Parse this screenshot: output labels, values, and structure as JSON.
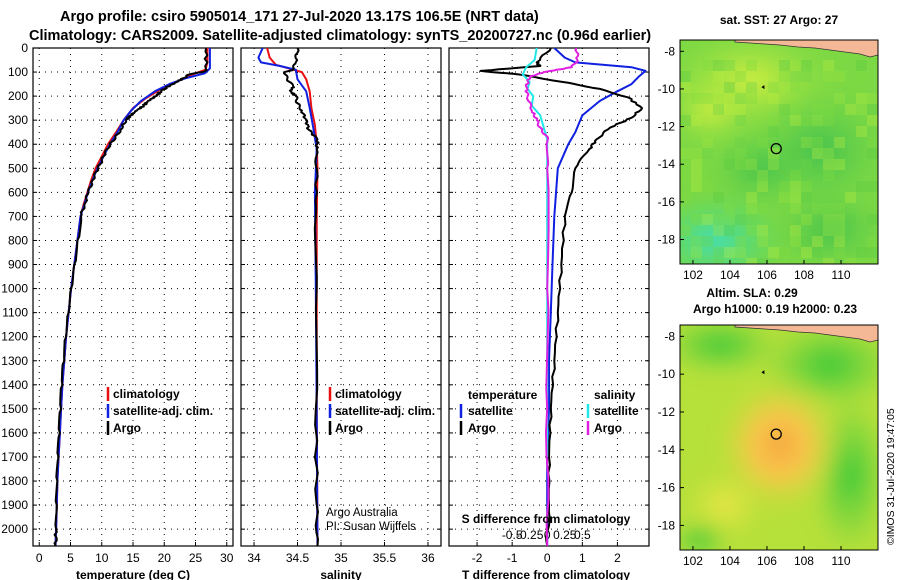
{
  "title_line1": "Argo profile: csiro 5905014_171 27-Jul-2020 13.17S 106.5E (NRT data)",
  "title_line2": "Climatology: CARS2009. Satellite-adjusted climatology: synTS_20200727.nc (0.96d earlier)",
  "credits": {
    "line1": "Argo Australia",
    "line2": "PI: Susan Wijffels"
  },
  "watermark": "©IMOS 31-Jul-2020 19:47:05",
  "colors": {
    "climatology": "#e81010",
    "satellite": "#1020e0",
    "argo": "#000000",
    "salinity_sat": "#20e8e8",
    "salinity_argo": "#e020e0"
  },
  "chart_data": [
    {
      "id": "temperature-panel",
      "type": "line",
      "xlabel": "temperature (deg C)",
      "xlim": [
        -1,
        31
      ],
      "xticks": [
        0,
        5,
        10,
        15,
        20,
        25,
        30
      ],
      "ylim": [
        2070,
        0
      ],
      "yticks": [
        0,
        100,
        200,
        300,
        400,
        500,
        600,
        700,
        800,
        900,
        1000,
        1100,
        1200,
        1300,
        1400,
        1500,
        1600,
        1700,
        1800,
        1900,
        2000
      ],
      "legend": [
        "climatology",
        "satellite-adj. clim.",
        "Argo"
      ],
      "series": [
        {
          "name": "climatology",
          "color": "#e81010",
          "points": [
            [
              26.9,
              0
            ],
            [
              26.9,
              60
            ],
            [
              26.6,
              90
            ],
            [
              24.5,
              110
            ],
            [
              22,
              140
            ],
            [
              19.5,
              170
            ],
            [
              17,
              210
            ],
            [
              15,
              250
            ],
            [
              13.5,
              300
            ],
            [
              12.3,
              350
            ],
            [
              11,
              400
            ],
            [
              10,
              450
            ],
            [
              9,
              500
            ],
            [
              8.3,
              550
            ],
            [
              7.7,
              600
            ],
            [
              7.1,
              650
            ],
            [
              6.6,
              700
            ],
            [
              6.1,
              800
            ],
            [
              5.6,
              900
            ],
            [
              5.1,
              1000
            ],
            [
              4.7,
              1100
            ],
            [
              4.3,
              1200
            ],
            [
              4,
              1300
            ],
            [
              3.7,
              1400
            ],
            [
              3.5,
              1500
            ],
            [
              3.3,
              1600
            ],
            [
              3.1,
              1700
            ],
            [
              2.9,
              1800
            ],
            [
              2.8,
              1900
            ],
            [
              2.7,
              2000
            ],
            [
              2.6,
              2070
            ]
          ]
        },
        {
          "name": "satellite-adj. clim.",
          "color": "#1020e0",
          "points": [
            [
              27.3,
              0
            ],
            [
              27.3,
              85
            ],
            [
              26.5,
              105
            ],
            [
              23.5,
              125
            ],
            [
              20.8,
              150
            ],
            [
              18.5,
              180
            ],
            [
              16.3,
              220
            ],
            [
              14.7,
              260
            ],
            [
              13.5,
              300
            ],
            [
              12.5,
              350
            ],
            [
              11.3,
              400
            ],
            [
              10.3,
              450
            ],
            [
              9.3,
              500
            ],
            [
              8.5,
              550
            ],
            [
              7.8,
              600
            ],
            [
              7.2,
              650
            ],
            [
              6.6,
              700
            ],
            [
              6.1,
              800
            ],
            [
              5.6,
              900
            ],
            [
              5.1,
              1000
            ],
            [
              4.7,
              1100
            ],
            [
              4.3,
              1200
            ],
            [
              4,
              1300
            ],
            [
              3.7,
              1400
            ],
            [
              3.5,
              1500
            ],
            [
              3.3,
              1600
            ],
            [
              3.1,
              1700
            ],
            [
              2.9,
              1800
            ],
            [
              2.8,
              1900
            ],
            [
              2.7,
              2000
            ],
            [
              2.6,
              2070
            ]
          ]
        },
        {
          "name": "Argo",
          "color": "#000000",
          "points": [
            [
              26.7,
              0
            ],
            [
              26.7,
              90
            ],
            [
              26.1,
              100
            ],
            [
              24,
              110
            ],
            [
              23.1,
              125
            ],
            [
              21.7,
              145
            ],
            [
              20.3,
              165
            ],
            [
              19.5,
              180
            ],
            [
              18.7,
              200
            ],
            [
              17.4,
              220
            ],
            [
              16.7,
              240
            ],
            [
              15.6,
              260
            ],
            [
              14.6,
              280
            ],
            [
              13.9,
              300
            ],
            [
              13,
              340
            ],
            [
              12.2,
              370
            ],
            [
              11.3,
              400
            ],
            [
              10.3,
              450
            ],
            [
              9.4,
              500
            ],
            [
              8.5,
              550
            ],
            [
              7.9,
              600
            ],
            [
              7.2,
              650
            ],
            [
              6.7,
              700
            ],
            [
              6.1,
              800
            ],
            [
              5.6,
              900
            ],
            [
              5.1,
              1000
            ],
            [
              4.7,
              1100
            ],
            [
              4.3,
              1200
            ],
            [
              4,
              1300
            ],
            [
              3.7,
              1400
            ],
            [
              3.5,
              1500
            ],
            [
              3.3,
              1600
            ],
            [
              3.1,
              1700
            ],
            [
              2.9,
              1800
            ],
            [
              2.8,
              1900
            ],
            [
              2.7,
              2000
            ],
            [
              2.65,
              2070
            ]
          ]
        }
      ]
    },
    {
      "id": "salinity-panel",
      "type": "line",
      "xlabel": "salinity",
      "xlim": [
        33.85,
        36.15
      ],
      "xticks": [
        34,
        34.5,
        35,
        35.5,
        36
      ],
      "ylim": [
        2070,
        0
      ],
      "legend": [
        "climatology",
        "satellite-adj. clim.",
        "Argo"
      ],
      "series": [
        {
          "name": "climatology",
          "color": "#e81010",
          "points": [
            [
              34.15,
              0
            ],
            [
              34.18,
              40
            ],
            [
              34.25,
              70
            ],
            [
              34.45,
              90
            ],
            [
              34.55,
              100
            ],
            [
              34.6,
              130
            ],
            [
              34.64,
              180
            ],
            [
              34.66,
              250
            ],
            [
              34.7,
              320
            ],
            [
              34.72,
              400
            ],
            [
              34.73,
              500
            ],
            [
              34.72,
              700
            ],
            [
              34.72,
              1000
            ],
            [
              34.72,
              1500
            ],
            [
              34.73,
              2070
            ]
          ]
        },
        {
          "name": "satellite-adj. clim.",
          "color": "#1020e0",
          "points": [
            [
              34.1,
              0
            ],
            [
              34.05,
              40
            ],
            [
              34.08,
              60
            ],
            [
              34.3,
              75
            ],
            [
              34.48,
              90
            ],
            [
              34.5,
              130
            ],
            [
              34.6,
              180
            ],
            [
              34.64,
              250
            ],
            [
              34.68,
              330
            ],
            [
              34.72,
              420
            ],
            [
              34.7,
              600
            ],
            [
              34.71,
              1000
            ],
            [
              34.72,
              1500
            ],
            [
              34.73,
              2070
            ]
          ]
        },
        {
          "name": "Argo",
          "color": "#000000",
          "points": [
            [
              34.5,
              0
            ],
            [
              34.48,
              60
            ],
            [
              34.45,
              90
            ],
            [
              34.35,
              100
            ],
            [
              34.38,
              130
            ],
            [
              34.45,
              160
            ],
            [
              34.42,
              180
            ],
            [
              34.48,
              200
            ],
            [
              34.5,
              230
            ],
            [
              34.55,
              260
            ],
            [
              34.6,
              300
            ],
            [
              34.63,
              340
            ],
            [
              34.73,
              380
            ],
            [
              34.72,
              420
            ],
            [
              34.72,
              500
            ],
            [
              34.71,
              700
            ],
            [
              34.72,
              1000
            ],
            [
              34.71,
              1500
            ],
            [
              34.72,
              1900
            ],
            [
              34.73,
              2070
            ]
          ]
        }
      ]
    },
    {
      "id": "difference-panel",
      "type": "line",
      "xlabel": "T difference from climatology",
      "xlabel2": "S difference from climatology",
      "xlim": [
        -2.8,
        2.9
      ],
      "xticks": [
        -2,
        -1,
        0,
        1,
        2
      ],
      "x2ticks": [
        -0.5,
        -0.25,
        0,
        0.25,
        0.5
      ],
      "x2labels": [
        "-0.5",
        "-0.25",
        "0",
        "0.25",
        "0.5"
      ],
      "ylim": [
        2070,
        0
      ],
      "legend_left_title": "temperature",
      "legend_right_title": "salinity",
      "legend_left": [
        "satellite",
        "Argo"
      ],
      "legend_right": [
        "satellite",
        "Argo"
      ],
      "series": [
        {
          "name": "temperature satellite",
          "color": "#1020e0",
          "points": [
            [
              0.2,
              0
            ],
            [
              0.5,
              40
            ],
            [
              0.8,
              60
            ],
            [
              2.4,
              80
            ],
            [
              2.8,
              95
            ],
            [
              2.6,
              120
            ],
            [
              2.4,
              150
            ],
            [
              2,
              180
            ],
            [
              1.5,
              220
            ],
            [
              1,
              280
            ],
            [
              0.8,
              350
            ],
            [
              0.6,
              400
            ],
            [
              0.3,
              500
            ],
            [
              0.2,
              700
            ],
            [
              0.15,
              900
            ],
            [
              0.1,
              1100
            ],
            [
              0.05,
              1300
            ],
            [
              0.05,
              1500
            ],
            [
              0,
              1700
            ],
            [
              0,
              2000
            ],
            [
              0,
              2070
            ]
          ]
        },
        {
          "name": "temperature Argo",
          "color": "#000000",
          "points": [
            [
              0.1,
              0
            ],
            [
              -0.3,
              60
            ],
            [
              -0.2,
              75
            ],
            [
              -1.9,
              95
            ],
            [
              -0.8,
              110
            ],
            [
              0.4,
              140
            ],
            [
              1.5,
              170
            ],
            [
              2.3,
              205
            ],
            [
              2.7,
              250
            ],
            [
              2.4,
              290
            ],
            [
              1.8,
              330
            ],
            [
              1.4,
              380
            ],
            [
              1.2,
              420
            ],
            [
              0.8,
              500
            ],
            [
              0.7,
              600
            ],
            [
              0.5,
              700
            ],
            [
              0.4,
              900
            ],
            [
              0.3,
              1100
            ],
            [
              0.2,
              1300
            ],
            [
              0.1,
              1500
            ],
            [
              0.05,
              1700
            ],
            [
              0.05,
              1900
            ],
            [
              0,
              2070
            ]
          ]
        },
        {
          "name": "salinity satellite",
          "color": "#20e8e8",
          "points": [
            [
              -0.15,
              0
            ],
            [
              -0.18,
              50
            ],
            [
              -0.3,
              80
            ],
            [
              -0.35,
              110
            ],
            [
              -0.25,
              140
            ],
            [
              -0.28,
              170
            ],
            [
              -0.2,
              200
            ],
            [
              -0.22,
              240
            ],
            [
              -0.1,
              280
            ],
            [
              -0.05,
              330
            ],
            [
              0,
              380
            ],
            [
              0,
              600
            ],
            [
              0,
              1000
            ],
            [
              0,
              1500
            ],
            [
              0,
              1700
            ]
          ]
        },
        {
          "name": "salinity Argo",
          "color": "#e020e0",
          "points": [
            [
              0.42,
              0
            ],
            [
              0.43,
              50
            ],
            [
              0.35,
              80
            ],
            [
              -0.05,
              100
            ],
            [
              -0.25,
              120
            ],
            [
              -0.3,
              160
            ],
            [
              -0.28,
              200
            ],
            [
              -0.22,
              260
            ],
            [
              -0.15,
              300
            ],
            [
              -0.1,
              330
            ],
            [
              0.01,
              380
            ],
            [
              0,
              500
            ],
            [
              0,
              1000
            ],
            [
              0,
              1500
            ],
            [
              0,
              2070
            ]
          ]
        }
      ]
    },
    {
      "id": "sst-map",
      "type": "heatmap",
      "title": "sat. SST: 27 Argo: 27",
      "xlim": [
        101.3,
        112
      ],
      "ylim": [
        -19.3,
        -7.4
      ],
      "xticks": [
        102,
        104,
        106,
        108,
        110
      ],
      "yticks": [
        -8,
        -10,
        -12,
        -14,
        -16,
        -18
      ],
      "marker": {
        "lon": 106.5,
        "lat": -13.17
      }
    },
    {
      "id": "sla-map",
      "type": "heatmap",
      "title": "Altim. SLA: 0.29",
      "subtitle": "Argo h1000: 0.19 h2000: 0.23",
      "xlim": [
        101.3,
        112
      ],
      "ylim": [
        -19.3,
        -7.4
      ],
      "xticks": [
        102,
        104,
        106,
        108,
        110
      ],
      "yticks": [
        -8,
        -10,
        -12,
        -14,
        -16,
        -18
      ],
      "marker": {
        "lon": 106.5,
        "lat": -13.17
      }
    }
  ]
}
